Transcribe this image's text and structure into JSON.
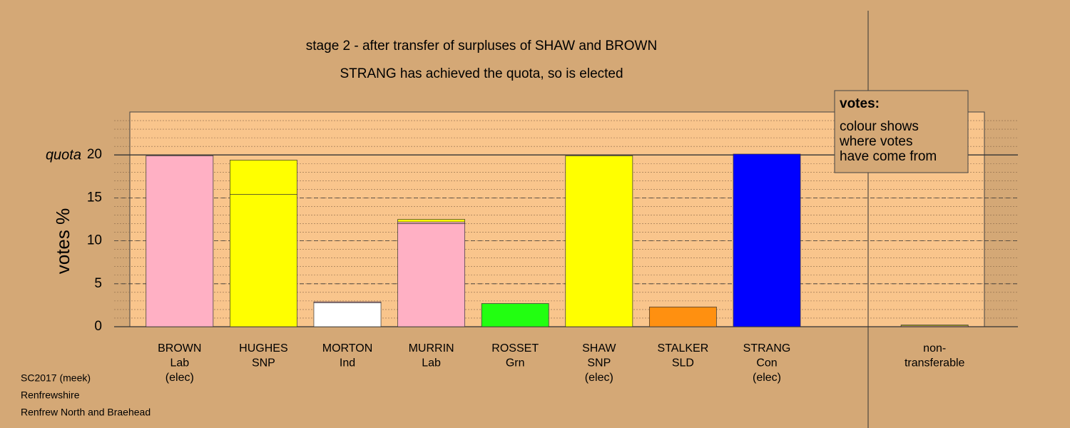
{
  "chart_data": {
    "type": "stacked_bar",
    "title": "stage 2 - after transfer of surpluses of SHAW and BROWN",
    "subtitle": "STRANG has achieved the quota, so is elected",
    "y_label": "votes %",
    "quota_label": "quota",
    "categories": [
      [
        "BROWN",
        "Lab",
        "(elec)"
      ],
      [
        "HUGHES",
        "SNP"
      ],
      [
        "MORTON",
        "Ind"
      ],
      [
        "MURRIN",
        "Lab"
      ],
      [
        "ROSSET",
        "Grn"
      ],
      [
        "SHAW",
        "SNP",
        "(elec)"
      ],
      [
        "STALKER",
        "SLD"
      ],
      [
        "STRANG",
        "Con",
        "(elec)"
      ],
      null,
      [
        "non-",
        "transferable"
      ]
    ],
    "series": [
      {
        "colors": [
          "#ffb0c4",
          "#ffff00",
          "#ffffff",
          "#ffb0c4",
          "#22ff11",
          "#ffff00",
          "#ff9010",
          "#0000ff",
          null,
          "#d4a86e"
        ],
        "values": [
          19.9,
          15.4,
          2.8,
          12.0,
          2.7,
          19.9,
          2.3,
          20.1,
          null,
          0
        ]
      },
      {
        "color": "#ffb0c4",
        "values": [
          0,
          0,
          0.1,
          0.2,
          0,
          0,
          0,
          0,
          null,
          0.1
        ]
      },
      {
        "color": "#ffff00",
        "values": [
          0,
          4.0,
          0,
          0.3,
          0,
          0,
          0,
          0,
          null,
          0.1
        ]
      }
    ],
    "ylim": [
      0,
      25
    ],
    "yticks": [
      0,
      5,
      10,
      15,
      20
    ],
    "quota": 20,
    "minor_grid_step": 1,
    "grid": true,
    "legend": {
      "title": "votes:",
      "lines": [
        "colour shows",
        "where votes",
        "have come from"
      ]
    },
    "footer": [
      "SC2017 (meek)",
      "Renfrewshire",
      "Renfrew North and Braehead"
    ]
  }
}
